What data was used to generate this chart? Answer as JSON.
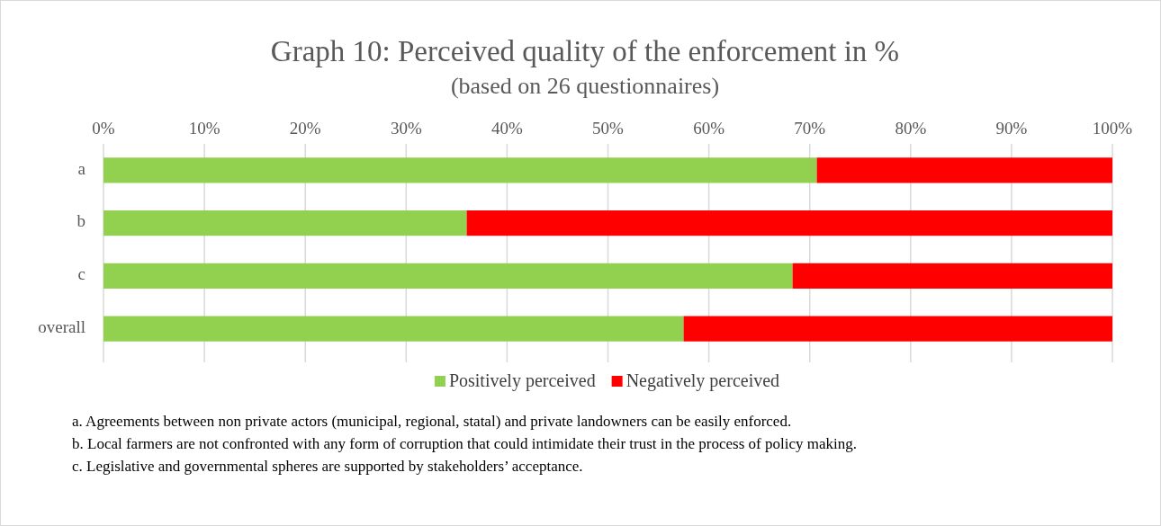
{
  "chart_data": {
    "type": "bar",
    "orientation": "horizontal",
    "stacked": true,
    "title": "Graph 10: Perceived quality of the enforcement in %",
    "subtitle": "(based on 26 questionnaires)",
    "categories": [
      "a",
      "b",
      "c",
      "overall"
    ],
    "series": [
      {
        "name": "Positively perceived",
        "color": "#92d050",
        "values": [
          70.7,
          36.0,
          68.3,
          57.5
        ]
      },
      {
        "name": "Negatively perceived",
        "color": "#ff0000",
        "values": [
          29.3,
          64.0,
          31.7,
          42.5
        ]
      }
    ],
    "xlim": [
      0,
      100
    ],
    "xticks": [
      {
        "value": 0,
        "label": "0%"
      },
      {
        "value": 10,
        "label": "10%"
      },
      {
        "value": 20,
        "label": "20%"
      },
      {
        "value": 30,
        "label": "30%"
      },
      {
        "value": 40,
        "label": "40%"
      },
      {
        "value": 50,
        "label": "50%"
      },
      {
        "value": 60,
        "label": "60%"
      },
      {
        "value": 70,
        "label": "70%"
      },
      {
        "value": 80,
        "label": "80%"
      },
      {
        "value": 90,
        "label": "90%"
      },
      {
        "value": 100,
        "label": "100%"
      }
    ],
    "grid": "x",
    "legend": "bottom",
    "annotations": [
      "a. Agreements between non private actors (municipal, regional, statal) and private landowners can be easily enforced.",
      "b. Local farmers are not confronted with any form of corruption that could intimidate their trust in the process of policy making.",
      "c. Legislative and governmental spheres are supported by stakeholders’ acceptance."
    ]
  }
}
